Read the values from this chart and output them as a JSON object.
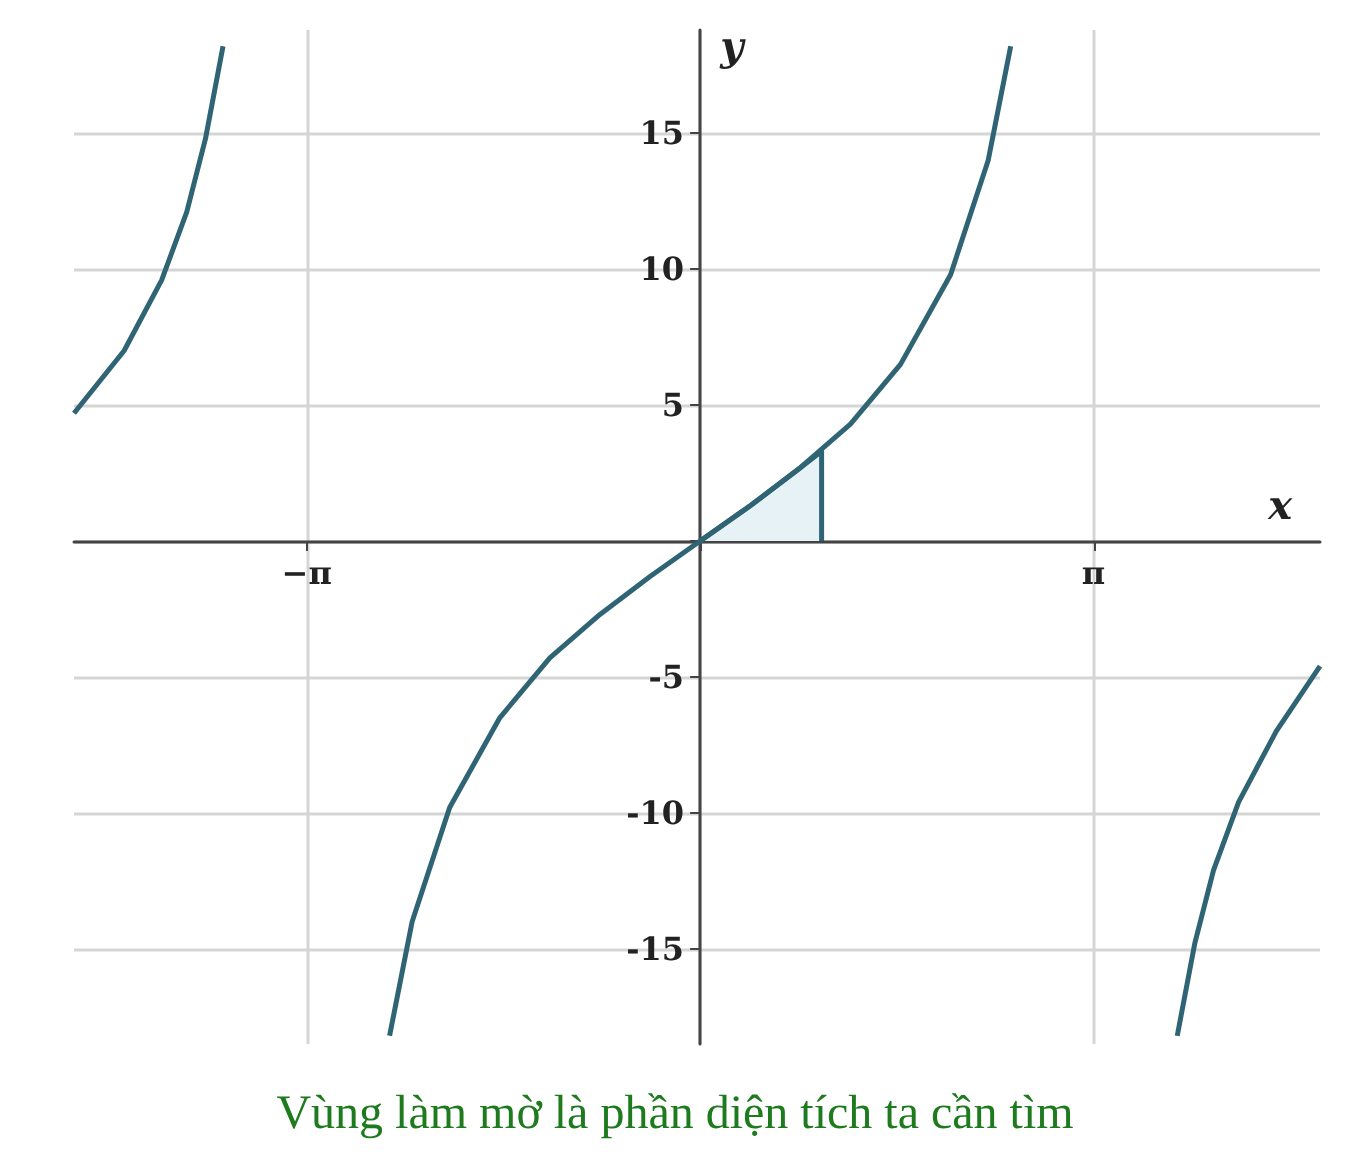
{
  "chart_data": {
    "type": "line",
    "xlabel": "x",
    "ylabel": "y",
    "xlim": [
      -5,
      4.95
    ],
    "ylim": [
      -18.5,
      18.8
    ],
    "xticks": [
      {
        "value": -3.1416,
        "label": "−π"
      },
      {
        "value": 0,
        "label": null
      },
      {
        "value": 3.1416,
        "label": "π"
      }
    ],
    "yticks": [
      -15,
      -10,
      -5,
      {
        "value": 0,
        "label": null
      },
      5,
      10,
      15
    ],
    "grid": true,
    "marker": "none",
    "line_style": "solid",
    "series": [
      {
        "color": "#2f6474",
        "x": [
          -5,
          -4.6,
          -4.3,
          -4.1,
          -3.95,
          -3.81,
          -3.1,
          -2.48,
          -2.3,
          -2.0,
          -1.6,
          -1.2,
          -0.8,
          -0.4,
          0,
          0.4,
          0.8,
          1.2,
          1.6,
          2.0,
          2.3,
          2.48,
          3.1,
          3.81,
          3.95,
          4.1,
          4.3,
          4.6,
          4.95
        ],
        "values": [
          4.7,
          7.0,
          9.6,
          12.1,
          14.8,
          18.2,
          null,
          -18.2,
          -14.0,
          -9.8,
          -6.5,
          -4.3,
          -2.7,
          -1.3,
          0,
          1.3,
          2.7,
          4.3,
          6.5,
          9.8,
          14.0,
          18.2,
          null,
          -18.2,
          -14.8,
          -12.1,
          -9.6,
          -7.0,
          -4.6
        ]
      },
      {
        "type": "area",
        "color": "#e6f2f5",
        "x": [
          0,
          0.4,
          0.8,
          0.97,
          0.97
        ],
        "values": [
          0,
          1.3,
          2.7,
          3.3,
          0
        ]
      }
    ],
    "annotations": [
      "Vùng làm mờ là phần diện tích ta cần tìm"
    ]
  }
}
